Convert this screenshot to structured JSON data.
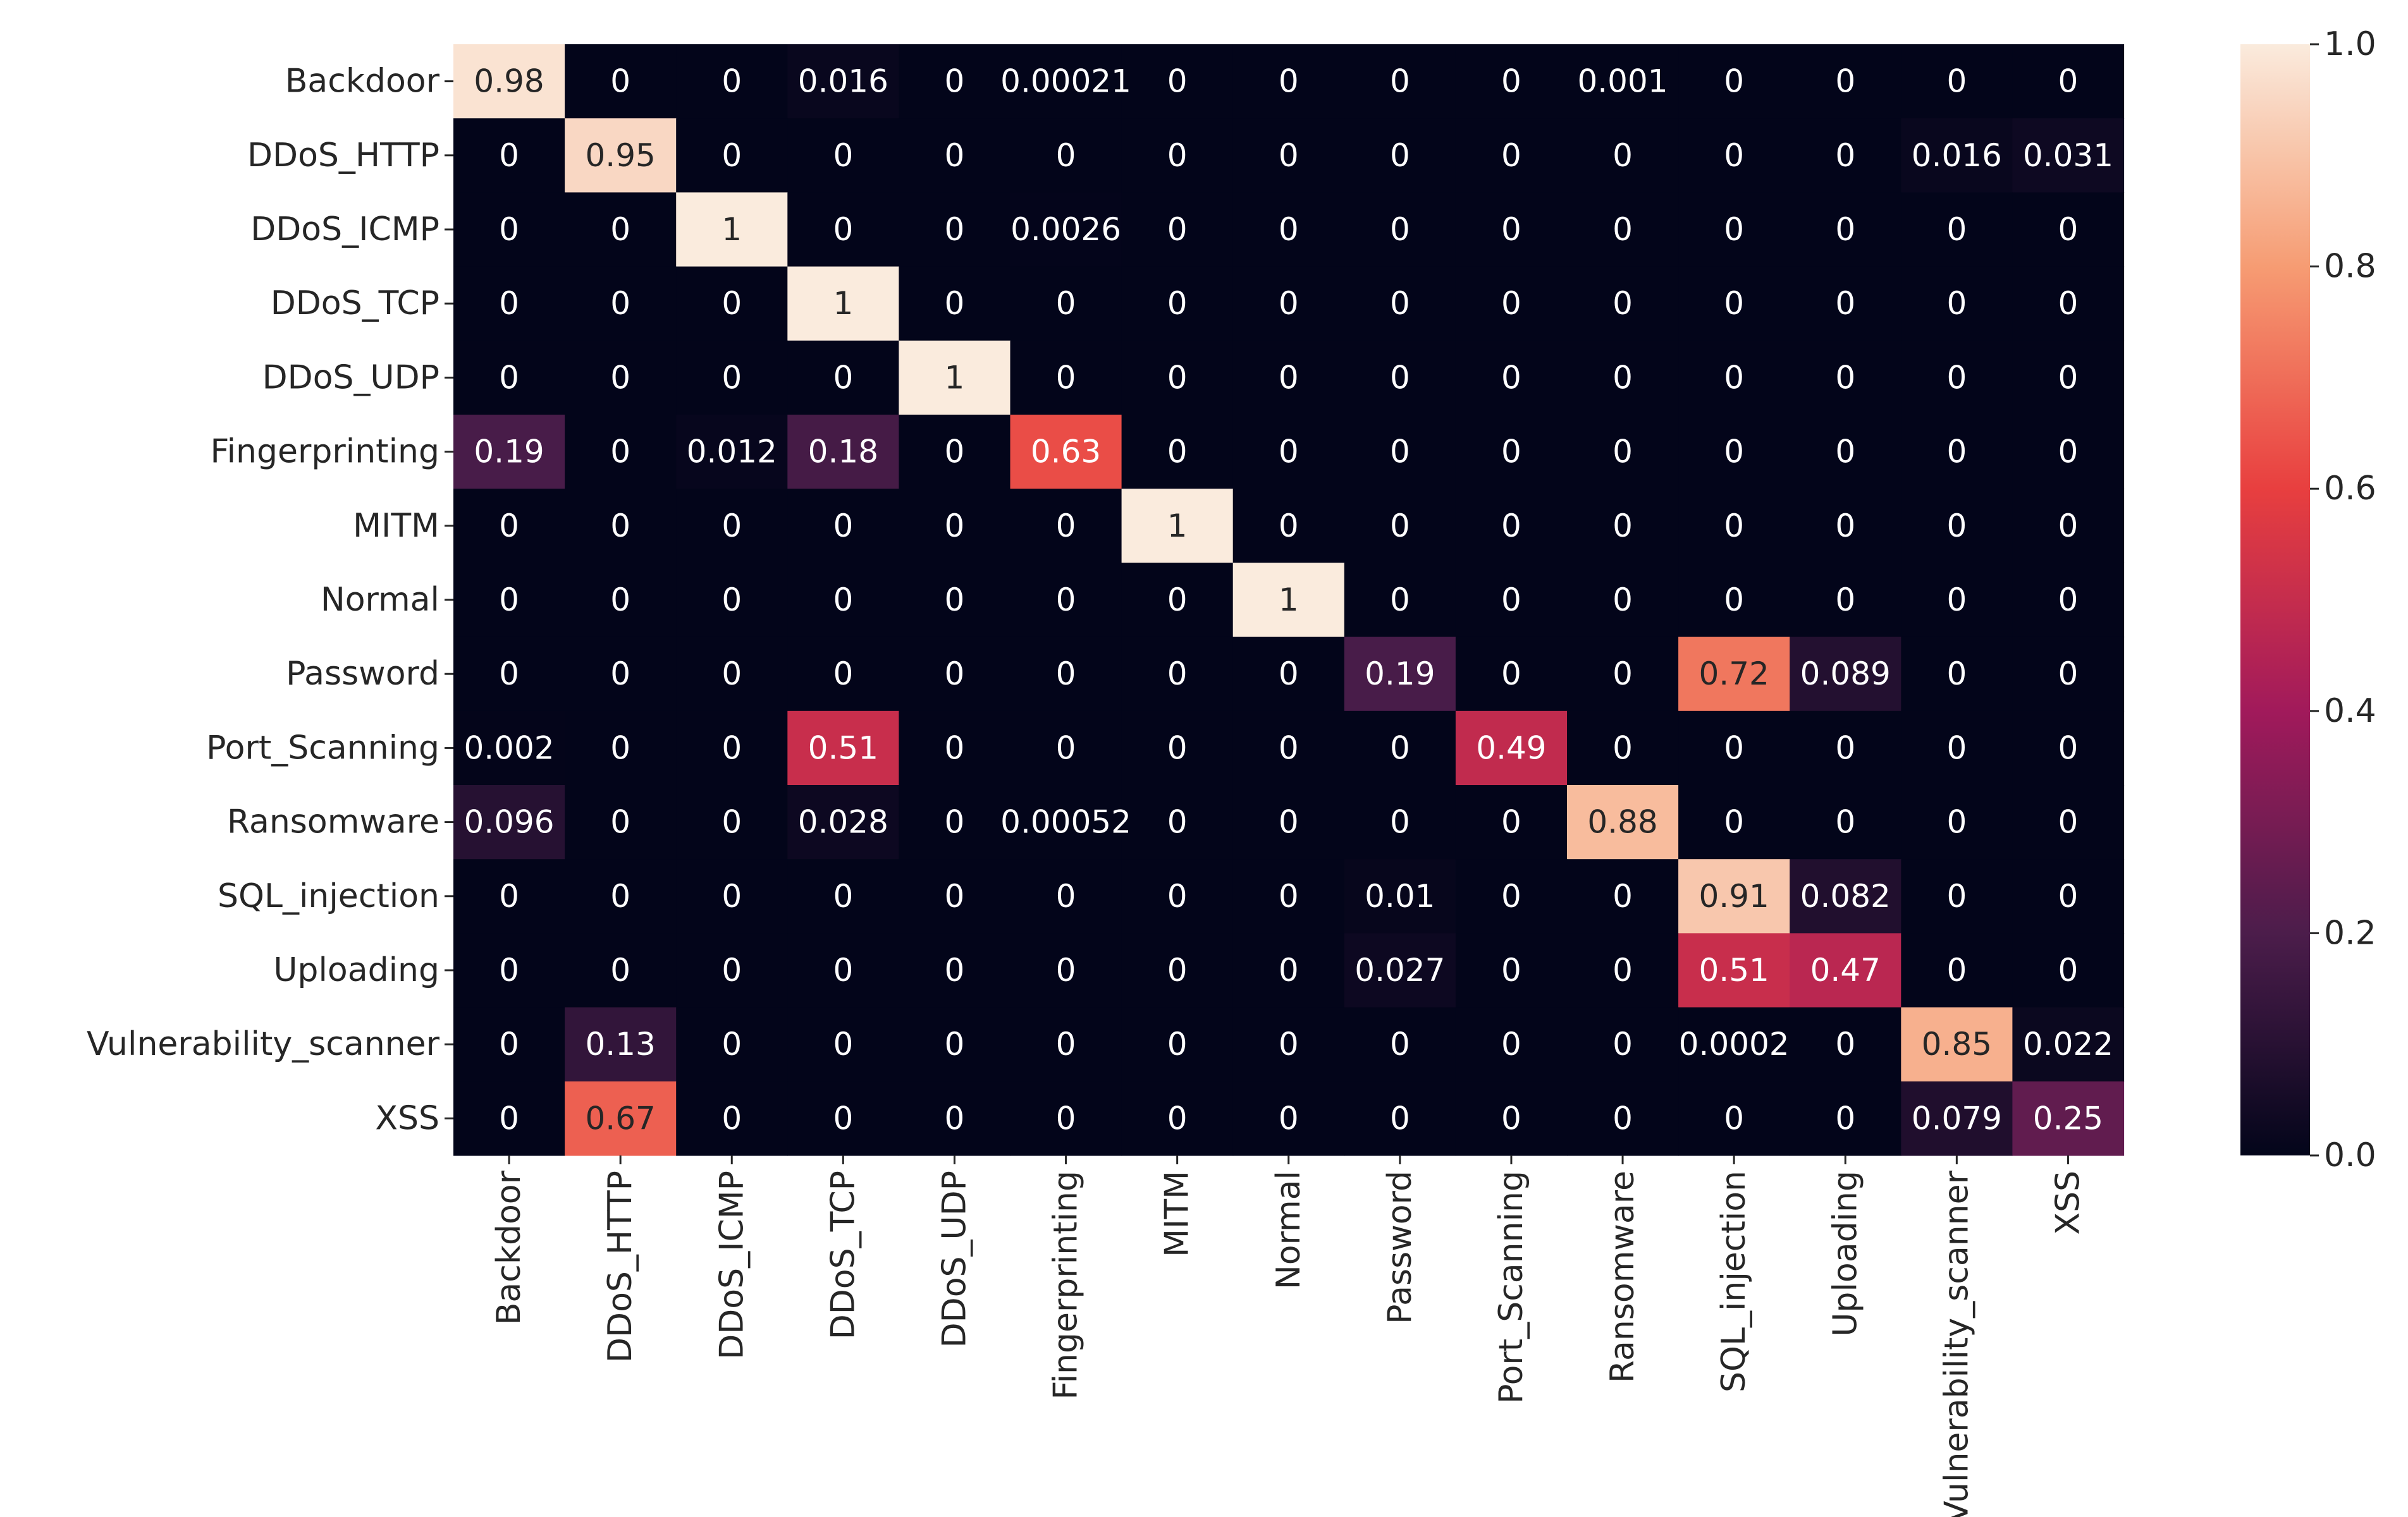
{
  "chart_data": {
    "type": "heatmap",
    "title": "",
    "xlabel": "",
    "ylabel": "",
    "rows": [
      "Backdoor",
      "DDoS_HTTP",
      "DDoS_ICMP",
      "DDoS_TCP",
      "DDoS_UDP",
      "Fingerprinting",
      "MITM",
      "Normal",
      "Password",
      "Port_Scanning",
      "Ransomware",
      "SQL_injection",
      "Uploading",
      "Vulnerability_scanner",
      "XSS"
    ],
    "columns": [
      "Backdoor",
      "DDoS_HTTP",
      "DDoS_ICMP",
      "DDoS_TCP",
      "DDoS_UDP",
      "Fingerprinting",
      "MITM",
      "Normal",
      "Password",
      "Port_Scanning",
      "Ransomware",
      "SQL_injection",
      "Uploading",
      "Vulnerability_scanner",
      "XSS"
    ],
    "values": [
      [
        0.98,
        0,
        0,
        0.016,
        0,
        0.00021,
        0,
        0,
        0,
        0,
        0.001,
        0,
        0,
        0,
        0
      ],
      [
        0,
        0.95,
        0,
        0,
        0,
        0,
        0,
        0,
        0,
        0,
        0,
        0,
        0,
        0.016,
        0.031
      ],
      [
        0,
        0,
        1,
        0,
        0,
        0.0026,
        0,
        0,
        0,
        0,
        0,
        0,
        0,
        0,
        0
      ],
      [
        0,
        0,
        0,
        1,
        0,
        0,
        0,
        0,
        0,
        0,
        0,
        0,
        0,
        0,
        0
      ],
      [
        0,
        0,
        0,
        0,
        1,
        0,
        0,
        0,
        0,
        0,
        0,
        0,
        0,
        0,
        0
      ],
      [
        0.19,
        0,
        0.012,
        0.18,
        0,
        0.63,
        0,
        0,
        0,
        0,
        0,
        0,
        0,
        0,
        0
      ],
      [
        0,
        0,
        0,
        0,
        0,
        0,
        1,
        0,
        0,
        0,
        0,
        0,
        0,
        0,
        0
      ],
      [
        0,
        0,
        0,
        0,
        0,
        0,
        0,
        1,
        0,
        0,
        0,
        0,
        0,
        0,
        0
      ],
      [
        0,
        0,
        0,
        0,
        0,
        0,
        0,
        0,
        0.19,
        0,
        0,
        0.72,
        0.089,
        0,
        0
      ],
      [
        0.002,
        0,
        0,
        0.51,
        0,
        0,
        0,
        0,
        0,
        0.49,
        0,
        0,
        0,
        0,
        0
      ],
      [
        0.096,
        0,
        0,
        0.028,
        0,
        0.00052,
        0,
        0,
        0,
        0,
        0.88,
        0,
        0,
        0,
        0
      ],
      [
        0,
        0,
        0,
        0,
        0,
        0,
        0,
        0,
        0.01,
        0,
        0,
        0.91,
        0.082,
        0,
        0
      ],
      [
        0,
        0,
        0,
        0,
        0,
        0,
        0,
        0,
        0.027,
        0,
        0,
        0.51,
        0.47,
        0,
        0
      ],
      [
        0,
        0.13,
        0,
        0,
        0,
        0,
        0,
        0,
        0,
        0,
        0,
        0.0002,
        0,
        0.85,
        0.022
      ],
      [
        0,
        0.67,
        0,
        0,
        0,
        0,
        0,
        0,
        0,
        0,
        0,
        0,
        0,
        0.079,
        0.25
      ]
    ],
    "annotations": [
      [
        "0.98",
        "0",
        "0",
        "0.016",
        "0",
        "0.00021",
        "0",
        "0",
        "0",
        "0",
        "0.001",
        "0",
        "0",
        "0",
        "0"
      ],
      [
        "0",
        "0.95",
        "0",
        "0",
        "0",
        "0",
        "0",
        "0",
        "0",
        "0",
        "0",
        "0",
        "0",
        "0.016",
        "0.031"
      ],
      [
        "0",
        "0",
        "1",
        "0",
        "0",
        "0.0026",
        "0",
        "0",
        "0",
        "0",
        "0",
        "0",
        "0",
        "0",
        "0"
      ],
      [
        "0",
        "0",
        "0",
        "1",
        "0",
        "0",
        "0",
        "0",
        "0",
        "0",
        "0",
        "0",
        "0",
        "0",
        "0"
      ],
      [
        "0",
        "0",
        "0",
        "0",
        "1",
        "0",
        "0",
        "0",
        "0",
        "0",
        "0",
        "0",
        "0",
        "0",
        "0"
      ],
      [
        "0.19",
        "0",
        "0.012",
        "0.18",
        "0",
        "0.63",
        "0",
        "0",
        "0",
        "0",
        "0",
        "0",
        "0",
        "0",
        "0"
      ],
      [
        "0",
        "0",
        "0",
        "0",
        "0",
        "0",
        "1",
        "0",
        "0",
        "0",
        "0",
        "0",
        "0",
        "0",
        "0"
      ],
      [
        "0",
        "0",
        "0",
        "0",
        "0",
        "0",
        "0",
        "1",
        "0",
        "0",
        "0",
        "0",
        "0",
        "0",
        "0"
      ],
      [
        "0",
        "0",
        "0",
        "0",
        "0",
        "0",
        "0",
        "0",
        "0.19",
        "0",
        "0",
        "0.72",
        "0.089",
        "0",
        "0"
      ],
      [
        "0.002",
        "0",
        "0",
        "0.51",
        "0",
        "0",
        "0",
        "0",
        "0",
        "0.49",
        "0",
        "0",
        "0",
        "0",
        "0"
      ],
      [
        "0.096",
        "0",
        "0",
        "0.028",
        "0",
        "0.00052",
        "0",
        "0",
        "0",
        "0",
        "0.88",
        "0",
        "0",
        "0",
        "0"
      ],
      [
        "0",
        "0",
        "0",
        "0",
        "0",
        "0",
        "0",
        "0",
        "0.01",
        "0",
        "0",
        "0.91",
        "0.082",
        "0",
        "0"
      ],
      [
        "0",
        "0",
        "0",
        "0",
        "0",
        "0",
        "0",
        "0",
        "0.027",
        "0",
        "0",
        "0.51",
        "0.47",
        "0",
        "0"
      ],
      [
        "0",
        "0.13",
        "0",
        "0",
        "0",
        "0",
        "0",
        "0",
        "0",
        "0",
        "0",
        "0.0002",
        "0",
        "0.85",
        "0.022"
      ],
      [
        "0",
        "0.67",
        "0",
        "0",
        "0",
        "0",
        "0",
        "0",
        "0",
        "0",
        "0",
        "0",
        "0",
        "0.079",
        "0.25"
      ]
    ],
    "colorbar": {
      "range": [
        0.0,
        1.0
      ],
      "ticks": [
        0.0,
        0.2,
        0.4,
        0.6,
        0.8,
        1.0
      ],
      "tick_labels": [
        "0.0",
        "0.2",
        "0.4",
        "0.6",
        "0.8",
        "1.0"
      ],
      "colormap": "rocket",
      "colormap_stops": [
        "#03051a",
        "#4c1d4b",
        "#a11a5b",
        "#e83f3f",
        "#f69c73",
        "#faebdd"
      ]
    },
    "grid": false
  }
}
